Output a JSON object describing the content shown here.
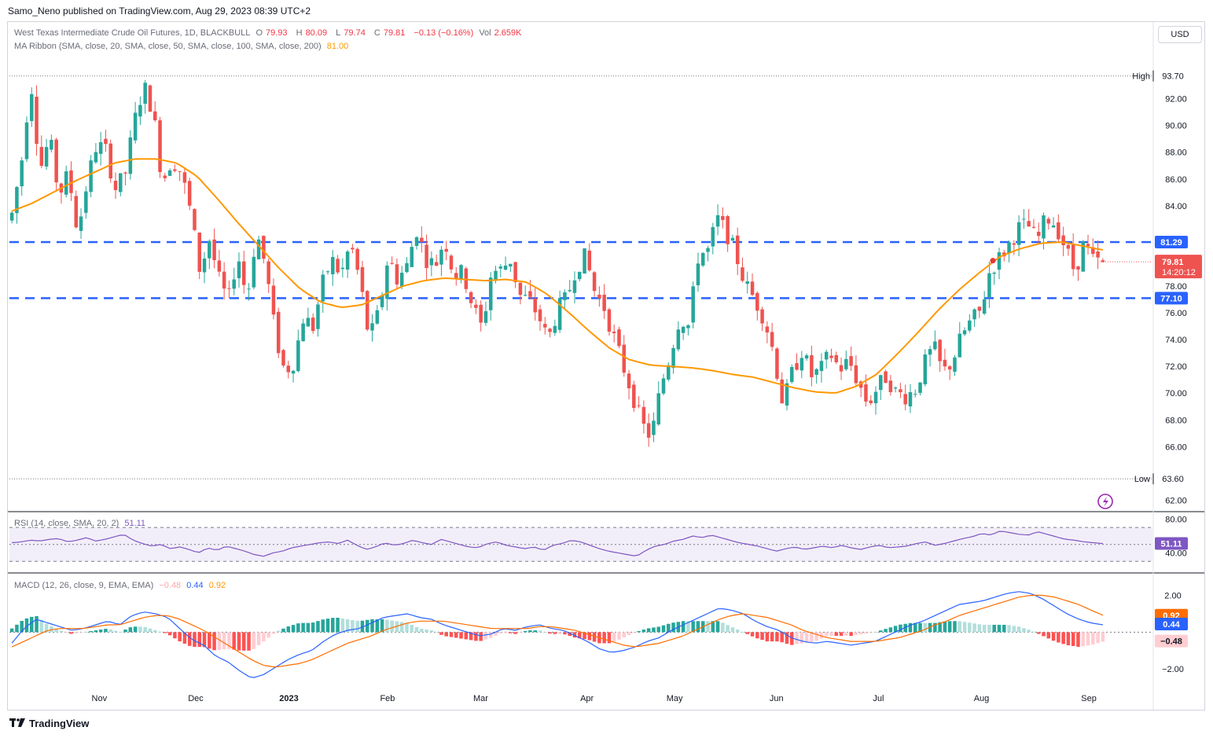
{
  "publisher_line": "Samo_Neno published on TradingView.com, Aug 29, 2023 08:39 UTC+2",
  "footer_brand": "TradingView",
  "currency": "USD",
  "legend": {
    "instrument": "West Texas Intermediate Crude Oil Futures, 1D, BLACKBULL",
    "open_label": "O",
    "open": "79.93",
    "high_label": "H",
    "high": "80.09",
    "low_label": "L",
    "low": "79.74",
    "close_label": "C",
    "close": "79.81",
    "change": "−0.13 (−0.16%)",
    "vol_label": "Vol",
    "vol": "2.659K",
    "ma_label": "MA Ribbon (SMA, close, 20, SMA, close, 50, SMA, close, 100, SMA, close, 200)",
    "ma_value": "81.00",
    "rsi_label": "RSI (14, close, SMA, 20, 2)",
    "rsi_value": "51.11",
    "macd_label": "MACD (12, 26, close, 9, EMA, EMA)",
    "macd_hist": "−0.48",
    "macd_line": "0.44",
    "macd_signal": "0.92"
  },
  "colors": {
    "up": "#26a69a",
    "down": "#ef5350",
    "ma": "#ff9800",
    "level_line": "#2962ff",
    "rsi": "#7e57c2",
    "macd": "#2962ff",
    "signal": "#ff6d00"
  },
  "chart_data": [
    {
      "type": "candlestick",
      "ylim": [
        61.5,
        94.5
      ],
      "yticks": [
        "62.00",
        "66.00",
        "68.00",
        "70.00",
        "72.00",
        "74.00",
        "76.00",
        "78.00",
        "84.00",
        "86.00",
        "88.00",
        "90.00",
        "92.00"
      ],
      "xticks": [
        "Nov",
        "Dec",
        "2023",
        "Feb",
        "Mar",
        "Apr",
        "May",
        "Jun",
        "Jul",
        "Aug",
        "Sep"
      ],
      "high_label": "High",
      "high_value": "93.70",
      "low_label": "Low",
      "low_value": "63.60",
      "levels": [
        {
          "value": 81.29,
          "label": "81.29"
        },
        {
          "value": 77.1,
          "label": "77.10"
        }
      ],
      "last_price": "79.81",
      "countdown": "14:20:12",
      "close_anchors": [
        83.4,
        87.2,
        93.5,
        86.7,
        89.1,
        84.8,
        86.4,
        82.0,
        85.8,
        88.6,
        88.1,
        85.3,
        86.2,
        90.2,
        93.0,
        91.1,
        85.8,
        87.5,
        86.5,
        83.5,
        79.1,
        81.5,
        78.5,
        76.8,
        80.5,
        77.0,
        82.1,
        79.4,
        74.4,
        71.6,
        72.4,
        75.7,
        74.9,
        78.1,
        80.0,
        78.8,
        81.2,
        78.4,
        74.0,
        76.0,
        80.2,
        78.5,
        79.5,
        82.3,
        80.1,
        79.5,
        81.6,
        78.8,
        79.0,
        76.5,
        74.8,
        79.1,
        79.2,
        80.0,
        77.3,
        76.9,
        75.8,
        73.9,
        76.2,
        77.1,
        79.5,
        80.2,
        77.5,
        76.4,
        74.2,
        72.0,
        69.9,
        67.6,
        66.7,
        70.5,
        72.9,
        75.7,
        75.0,
        80.4,
        80.6,
        83.0,
        82.0,
        80.3,
        78.1,
        77.0,
        75.6,
        73.0,
        69.1,
        71.6,
        73.2,
        71.3,
        71.7,
        73.0,
        71.8,
        72.4,
        70.8,
        69.2,
        70.4,
        71.3,
        70.0,
        69.8,
        70.2,
        72.1,
        73.5,
        71.5,
        72.4,
        74.3,
        75.4,
        76.1,
        79.2,
        80.1,
        81.1,
        82.3,
        82.6,
        81.3,
        83.2,
        82.6,
        80.9,
        79.1,
        81.2,
        79.8,
        79.8
      ],
      "ma_anchors": [
        83.6,
        84.2,
        85.0,
        85.8,
        86.5,
        87.2,
        87.5,
        87.5,
        87.2,
        86.2,
        84.5,
        82.7,
        81.0,
        79.3,
        77.8,
        76.8,
        76.4,
        76.6,
        77.3,
        78.0,
        78.4,
        78.6,
        78.5,
        78.4,
        78.5,
        78.3,
        77.4,
        76.1,
        74.7,
        73.4,
        72.5,
        72.1,
        72.0,
        71.9,
        71.7,
        71.4,
        71.2,
        70.8,
        70.4,
        70.1,
        70.0,
        70.5,
        71.4,
        72.9,
        74.5,
        76.2,
        77.7,
        79.0,
        80.2,
        80.8,
        81.2,
        81.3,
        81.0,
        80.7
      ],
      "first_date": "2022-10-06",
      "last_date": "2023-08-29",
      "date_label_positions": [
        [
          "Nov",
          0.12
        ],
        [
          "Dec",
          0.244
        ],
        [
          "2023",
          0.365
        ],
        [
          "Feb",
          0.493
        ],
        [
          "Mar",
          0.614
        ],
        [
          "Apr",
          0.752
        ],
        [
          "May",
          0.865
        ],
        [
          "Jun",
          0.996
        ],
        [
          "Jul",
          1.128
        ],
        [
          "Aug",
          1.262
        ],
        [
          "Sep",
          1.402
        ]
      ]
    },
    {
      "type": "line",
      "name": "RSI",
      "ylim": [
        20,
        85
      ],
      "yticks": [
        "40.00",
        "80.00"
      ],
      "bands": [
        30,
        50,
        70
      ],
      "value": "51.11",
      "values": [
        52,
        53,
        55,
        54,
        56,
        57,
        53,
        55,
        58,
        54,
        56,
        59,
        62,
        55,
        51,
        48,
        50,
        45,
        47,
        44,
        40,
        46,
        43,
        48,
        45,
        42,
        38,
        36,
        40,
        42,
        46,
        48,
        50,
        52,
        53,
        51,
        55,
        49,
        44,
        47,
        52,
        49,
        51,
        55,
        52,
        50,
        56,
        53,
        50,
        47,
        46,
        51,
        53,
        49,
        47,
        45,
        47,
        43,
        49,
        51,
        55,
        53,
        49,
        45,
        42,
        40,
        38,
        36,
        43,
        48,
        50,
        54,
        56,
        60,
        58,
        61,
        58,
        55,
        52,
        50,
        48,
        45,
        42,
        45,
        47,
        44,
        46,
        48,
        46,
        49,
        46,
        44,
        47,
        49,
        46,
        47,
        48,
        51,
        53,
        49,
        51,
        54,
        57,
        59,
        63,
        61,
        66,
        64,
        62,
        61,
        65,
        62,
        59,
        56,
        55,
        53,
        52,
        51
      ]
    },
    {
      "type": "bar+line",
      "name": "MACD",
      "ylim": [
        -2.8,
        3.0
      ],
      "yticks": [
        "2.00",
        "-2.00"
      ],
      "macd_value": "0.44",
      "signal_value": "0.92",
      "hist_value": "−0.48",
      "macd": [
        -0.6,
        0.2,
        0.7,
        0.5,
        0.3,
        0.1,
        0.2,
        0.4,
        0.6,
        0.4,
        0.9,
        1.1,
        1.0,
        0.8,
        0.2,
        -0.4,
        -0.7,
        -1.3,
        -1.6,
        -2.1,
        -2.5,
        -2.3,
        -1.9,
        -1.5,
        -1.2,
        -1.0,
        -0.5,
        -0.1,
        0.1,
        0.2,
        0.5,
        0.8,
        0.9,
        1.0,
        0.8,
        0.7,
        0.4,
        0.2,
        0.0,
        -0.2,
        -0.1,
        0.2,
        0.1,
        0.3,
        0.4,
        0.2,
        0.1,
        -0.2,
        -0.5,
        -0.9,
        -1.1,
        -1.0,
        -0.8,
        -0.5,
        -0.3,
        0.1,
        0.4,
        0.7,
        1.0,
        1.3,
        1.2,
        1.0,
        0.6,
        0.3,
        0.1,
        -0.3,
        -0.5,
        -0.6,
        -0.5,
        -0.6,
        -0.7,
        -0.6,
        -0.5,
        -0.2,
        0.1,
        0.4,
        0.6,
        0.9,
        1.2,
        1.5,
        1.6,
        1.7,
        1.9,
        2.1,
        2.2,
        2.1,
        1.8,
        1.4,
        1.0,
        0.7,
        0.5,
        0.4
      ],
      "signal": [
        -0.8,
        -0.5,
        -0.2,
        0.1,
        0.2,
        0.2,
        0.2,
        0.3,
        0.4,
        0.4,
        0.6,
        0.8,
        0.9,
        0.9,
        0.7,
        0.4,
        0.1,
        -0.3,
        -0.7,
        -1.1,
        -1.5,
        -1.8,
        -1.9,
        -1.8,
        -1.7,
        -1.5,
        -1.2,
        -0.9,
        -0.6,
        -0.4,
        -0.2,
        0.1,
        0.3,
        0.5,
        0.6,
        0.6,
        0.6,
        0.5,
        0.4,
        0.3,
        0.2,
        0.2,
        0.2,
        0.2,
        0.3,
        0.3,
        0.2,
        0.1,
        -0.1,
        -0.3,
        -0.5,
        -0.7,
        -0.8,
        -0.7,
        -0.6,
        -0.4,
        -0.2,
        0.1,
        0.4,
        0.7,
        0.9,
        1.0,
        0.9,
        0.8,
        0.6,
        0.4,
        0.1,
        -0.1,
        -0.3,
        -0.4,
        -0.5,
        -0.5,
        -0.5,
        -0.4,
        -0.3,
        -0.1,
        0.1,
        0.4,
        0.6,
        0.9,
        1.1,
        1.3,
        1.5,
        1.7,
        1.9,
        2.0,
        2.0,
        1.9,
        1.7,
        1.5,
        1.2,
        0.92
      ]
    }
  ]
}
